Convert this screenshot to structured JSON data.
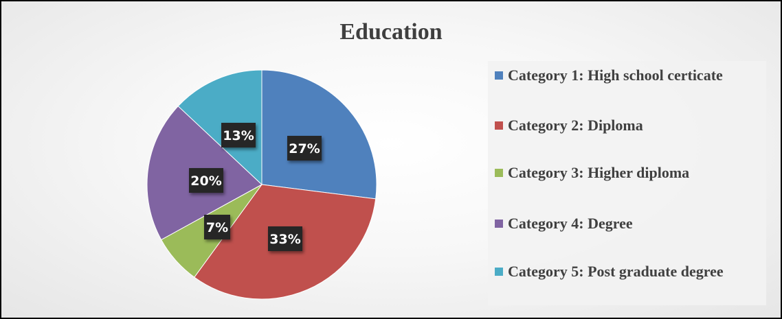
{
  "chart_data": {
    "type": "pie",
    "title": "Education",
    "categories": [
      "Category 1:  High school certicate",
      "Category 2: Diploma",
      "Category 3: Higher diploma",
      "Category 4: Degree",
      "Category 5: Post graduate degree"
    ],
    "values": [
      27,
      33,
      7,
      20,
      13
    ],
    "data_labels": [
      "27%",
      "33%",
      "7%",
      "20%",
      "13%"
    ],
    "colors": [
      "#4f81bd",
      "#c0504d",
      "#9bbb59",
      "#8064a2",
      "#4bacc6"
    ],
    "legend_position": "right"
  }
}
